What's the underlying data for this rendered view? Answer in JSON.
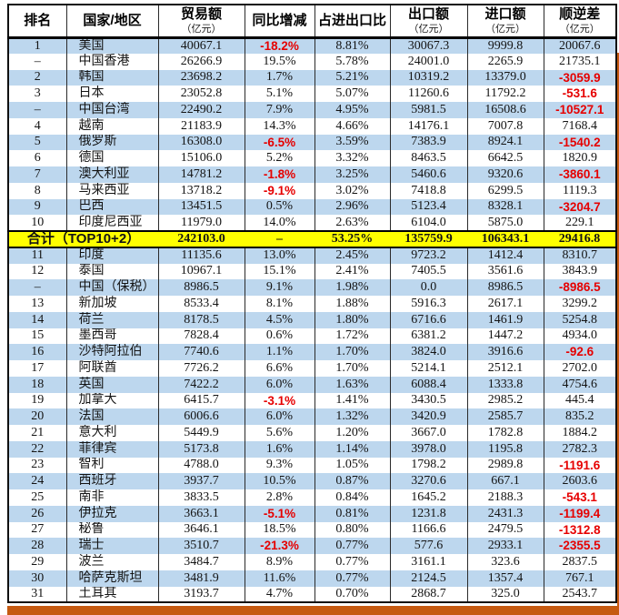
{
  "colors": {
    "row_blue": "#BDD7EE",
    "row_total_yellow": "#FFFF00",
    "negative_red": "#e60000",
    "accent_orange_bar": "#C55A11",
    "border_black": "#101010"
  },
  "table": {
    "columns": [
      {
        "label": "排名",
        "sub": ""
      },
      {
        "label": "国家/地区",
        "sub": ""
      },
      {
        "label": "贸易额",
        "sub": "（亿元）"
      },
      {
        "label": "同比增减",
        "sub": ""
      },
      {
        "label": "占进出口比",
        "sub": ""
      },
      {
        "label": "出口额",
        "sub": "（亿元）"
      },
      {
        "label": "进口额",
        "sub": "（亿元）"
      },
      {
        "label": "顺逆差",
        "sub": "（亿元）"
      }
    ],
    "rows": [
      {
        "rank": "1",
        "name": "美国",
        "trade": "40067.1",
        "yoy": "-18.2%",
        "share": "8.81%",
        "export": "30067.3",
        "import": "9999.8",
        "balance": "20067.6"
      },
      {
        "rank": "–",
        "name": "中国香港",
        "trade": "26266.9",
        "yoy": "19.5%",
        "share": "5.78%",
        "export": "24001.0",
        "import": "2265.9",
        "balance": "21735.1"
      },
      {
        "rank": "2",
        "name": "韩国",
        "trade": "23698.2",
        "yoy": "1.7%",
        "share": "5.21%",
        "export": "10319.2",
        "import": "13379.0",
        "balance": "-3059.9"
      },
      {
        "rank": "3",
        "name": "日本",
        "trade": "23052.8",
        "yoy": "5.1%",
        "share": "5.07%",
        "export": "11260.6",
        "import": "11792.2",
        "balance": "-531.6"
      },
      {
        "rank": "–",
        "name": "中国台湾",
        "trade": "22490.2",
        "yoy": "7.9%",
        "share": "4.95%",
        "export": "5981.5",
        "import": "16508.6",
        "balance": "-10527.1"
      },
      {
        "rank": "4",
        "name": "越南",
        "trade": "21183.9",
        "yoy": "14.3%",
        "share": "4.66%",
        "export": "14176.1",
        "import": "7007.8",
        "balance": "7168.4"
      },
      {
        "rank": "5",
        "name": "俄罗斯",
        "trade": "16308.0",
        "yoy": "-6.5%",
        "share": "3.59%",
        "export": "7383.9",
        "import": "8924.1",
        "balance": "-1540.2"
      },
      {
        "rank": "6",
        "name": "德国",
        "trade": "15106.0",
        "yoy": "5.2%",
        "share": "3.32%",
        "export": "8463.5",
        "import": "6642.5",
        "balance": "1820.9"
      },
      {
        "rank": "7",
        "name": "澳大利亚",
        "trade": "14781.2",
        "yoy": "-1.8%",
        "share": "3.25%",
        "export": "5460.6",
        "import": "9320.6",
        "balance": "-3860.1"
      },
      {
        "rank": "8",
        "name": "马来西亚",
        "trade": "13718.2",
        "yoy": "-9.1%",
        "share": "3.02%",
        "export": "7418.8",
        "import": "6299.5",
        "balance": "1119.3"
      },
      {
        "rank": "9",
        "name": "巴西",
        "trade": "13451.5",
        "yoy": "0.5%",
        "share": "2.96%",
        "export": "5123.4",
        "import": "8328.1",
        "balance": "-3204.7"
      },
      {
        "rank": "10",
        "name": "印度尼西亚",
        "trade": "11979.0",
        "yoy": "14.0%",
        "share": "2.63%",
        "export": "6104.0",
        "import": "5875.0",
        "balance": "229.1"
      },
      {
        "type": "total",
        "label": "合计（TOP10+2）",
        "trade": "242103.0",
        "yoy": "–",
        "share": "53.25%",
        "export": "135759.9",
        "import": "106343.1",
        "balance": "29416.8"
      },
      {
        "rank": "11",
        "name": "印度",
        "trade": "11135.6",
        "yoy": "13.0%",
        "share": "2.45%",
        "export": "9723.2",
        "import": "1412.4",
        "balance": "8310.7"
      },
      {
        "rank": "12",
        "name": "泰国",
        "trade": "10967.1",
        "yoy": "15.1%",
        "share": "2.41%",
        "export": "7405.5",
        "import": "3561.6",
        "balance": "3843.9"
      },
      {
        "rank": "–",
        "name": "中国（保税）",
        "trade": "8986.5",
        "yoy": "9.1%",
        "share": "1.98%",
        "export": "0.0",
        "import": "8986.5",
        "balance": "-8986.5"
      },
      {
        "rank": "13",
        "name": "新加坡",
        "trade": "8533.4",
        "yoy": "8.1%",
        "share": "1.88%",
        "export": "5916.3",
        "import": "2617.1",
        "balance": "3299.2"
      },
      {
        "rank": "14",
        "name": "荷兰",
        "trade": "8178.5",
        "yoy": "4.5%",
        "share": "1.80%",
        "export": "6716.6",
        "import": "1461.9",
        "balance": "5254.8"
      },
      {
        "rank": "15",
        "name": "墨西哥",
        "trade": "7828.4",
        "yoy": "0.6%",
        "share": "1.72%",
        "export": "6381.2",
        "import": "1447.2",
        "balance": "4934.0"
      },
      {
        "rank": "16",
        "name": "沙特阿拉伯",
        "trade": "7740.6",
        "yoy": "1.1%",
        "share": "1.70%",
        "export": "3824.0",
        "import": "3916.6",
        "balance": "-92.6"
      },
      {
        "rank": "17",
        "name": "阿联酋",
        "trade": "7726.2",
        "yoy": "6.6%",
        "share": "1.70%",
        "export": "5214.1",
        "import": "2512.1",
        "balance": "2702.0"
      },
      {
        "rank": "18",
        "name": "英国",
        "trade": "7422.2",
        "yoy": "6.0%",
        "share": "1.63%",
        "export": "6088.4",
        "import": "1333.8",
        "balance": "4754.6"
      },
      {
        "rank": "19",
        "name": "加拿大",
        "trade": "6415.7",
        "yoy": "-3.1%",
        "share": "1.41%",
        "export": "3430.5",
        "import": "2985.2",
        "balance": "445.4"
      },
      {
        "rank": "20",
        "name": "法国",
        "trade": "6006.6",
        "yoy": "6.0%",
        "share": "1.32%",
        "export": "3420.9",
        "import": "2585.7",
        "balance": "835.2"
      },
      {
        "rank": "21",
        "name": "意大利",
        "trade": "5449.9",
        "yoy": "5.6%",
        "share": "1.20%",
        "export": "3667.0",
        "import": "1782.8",
        "balance": "1884.2"
      },
      {
        "rank": "22",
        "name": "菲律宾",
        "trade": "5173.8",
        "yoy": "1.6%",
        "share": "1.14%",
        "export": "3978.0",
        "import": "1195.8",
        "balance": "2782.3"
      },
      {
        "rank": "23",
        "name": "智利",
        "trade": "4788.0",
        "yoy": "9.3%",
        "share": "1.05%",
        "export": "1798.2",
        "import": "2989.8",
        "balance": "-1191.6"
      },
      {
        "rank": "24",
        "name": "西班牙",
        "trade": "3937.7",
        "yoy": "10.5%",
        "share": "0.87%",
        "export": "3270.6",
        "import": "667.1",
        "balance": "2603.6"
      },
      {
        "rank": "25",
        "name": "南非",
        "trade": "3833.5",
        "yoy": "2.8%",
        "share": "0.84%",
        "export": "1645.2",
        "import": "2188.3",
        "balance": "-543.1"
      },
      {
        "rank": "26",
        "name": "伊拉克",
        "trade": "3663.1",
        "yoy": "-5.1%",
        "share": "0.81%",
        "export": "1231.8",
        "import": "2431.3",
        "balance": "-1199.4"
      },
      {
        "rank": "27",
        "name": "秘鲁",
        "trade": "3646.1",
        "yoy": "18.5%",
        "share": "0.80%",
        "export": "1166.6",
        "import": "2479.5",
        "balance": "-1312.8"
      },
      {
        "rank": "28",
        "name": "瑞士",
        "trade": "3510.7",
        "yoy": "-21.3%",
        "share": "0.77%",
        "export": "577.6",
        "import": "2933.1",
        "balance": "-2355.5"
      },
      {
        "rank": "29",
        "name": "波兰",
        "trade": "3484.7",
        "yoy": "8.9%",
        "share": "0.77%",
        "export": "3161.1",
        "import": "323.6",
        "balance": "2837.5"
      },
      {
        "rank": "30",
        "name": "哈萨克斯坦",
        "trade": "3481.9",
        "yoy": "11.6%",
        "share": "0.77%",
        "export": "2124.5",
        "import": "1357.4",
        "balance": "767.1"
      },
      {
        "rank": "31",
        "name": "土耳其",
        "trade": "3193.7",
        "yoy": "4.7%",
        "share": "0.70%",
        "export": "2868.7",
        "import": "325.0",
        "balance": "2543.7"
      }
    ]
  }
}
